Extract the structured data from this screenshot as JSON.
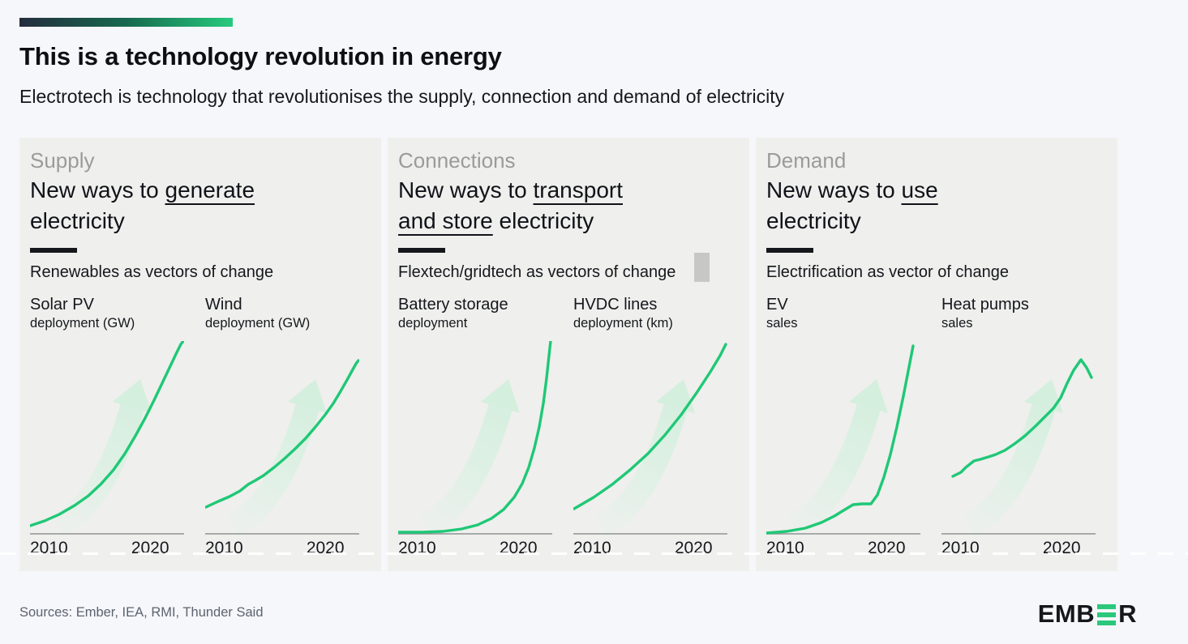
{
  "header": {
    "title": "This is a technology revolution in energy",
    "subtitle": "Electrotech is technology that revolutionises the supply, connection and demand of electricity"
  },
  "colors": {
    "accent_green": "#1fc876",
    "arrow_light_green": "#d5efde",
    "gradient_bar_start": "#252d3e",
    "gradient_bar_end": "#27ca7e",
    "panel_bg": "#efefed",
    "kicker_grey": "#9b9b9b",
    "axis_grey": "#909294",
    "text_dark": "#15171c",
    "logo_green": "#2bc87c"
  },
  "panels": [
    {
      "kicker": "Supply",
      "headline_segments": [
        {
          "t": "New ways to ",
          "u": false
        },
        {
          "t": "generate",
          "u": true
        },
        {
          "t": "\nelectricity",
          "u": false
        }
      ],
      "tagline": "Renewables as vectors of change",
      "charts": [
        {
          "title": "Solar PV",
          "subtitle": "deployment (GW)"
        },
        {
          "title": "Wind",
          "subtitle": "deployment (GW)"
        }
      ]
    },
    {
      "kicker": "Connections",
      "headline_segments": [
        {
          "t": "New ways to ",
          "u": false
        },
        {
          "t": "transport\nand store",
          "u": true
        },
        {
          "t": " electricity",
          "u": false
        }
      ],
      "tagline": "Flextech/gridtech as vectors of change",
      "charts": [
        {
          "title": "Battery storage",
          "subtitle": "deployment"
        },
        {
          "title": "HVDC lines",
          "subtitle": "deployment (km)"
        }
      ]
    },
    {
      "kicker": "Demand",
      "headline_segments": [
        {
          "t": "New ways to ",
          "u": false
        },
        {
          "t": "use",
          "u": true
        },
        {
          "t": "\nelectricity",
          "u": false
        }
      ],
      "tagline": "Electrification as vector of change",
      "charts": [
        {
          "title": "EV",
          "subtitle": "sales"
        },
        {
          "title": "Heat pumps",
          "subtitle": "sales"
        }
      ]
    }
  ],
  "chart_data": [
    {
      "type": "line",
      "name": "Solar PV deployment (GW)",
      "x_ticks": [
        "2010",
        "2020"
      ],
      "x_range_years": [
        2010,
        2024
      ],
      "y_ticks": [],
      "shape": "smooth exponential growth from near zero",
      "coord_space": "svg 190x240, y-down, schematic",
      "points": [
        [
          0,
          228
        ],
        [
          18,
          222
        ],
        [
          36,
          214
        ],
        [
          55,
          203
        ],
        [
          72,
          191
        ],
        [
          88,
          176
        ],
        [
          103,
          159
        ],
        [
          117,
          139
        ],
        [
          130,
          117
        ],
        [
          142,
          95
        ],
        [
          153,
          73
        ],
        [
          163,
          52
        ],
        [
          172,
          33
        ],
        [
          180,
          16
        ],
        [
          186,
          4
        ],
        [
          189,
          0
        ]
      ]
    },
    {
      "type": "line",
      "name": "Wind deployment (GW)",
      "x_ticks": [
        "2010",
        "2020"
      ],
      "x_range_years": [
        2010,
        2024
      ],
      "y_ticks": [],
      "shape": "steady accelerating growth from mid-level",
      "coord_space": "svg 190x240, y-down, schematic",
      "points": [
        [
          1,
          205
        ],
        [
          16,
          198
        ],
        [
          30,
          192
        ],
        [
          43,
          185
        ],
        [
          53,
          177
        ],
        [
          62,
          172
        ],
        [
          72,
          166
        ],
        [
          85,
          156
        ],
        [
          98,
          145
        ],
        [
          111,
          133
        ],
        [
          124,
          120
        ],
        [
          136,
          106
        ],
        [
          148,
          91
        ],
        [
          158,
          77
        ],
        [
          167,
          62
        ],
        [
          175,
          48
        ],
        [
          181,
          37
        ],
        [
          186,
          28
        ],
        [
          189,
          24
        ]
      ]
    },
    {
      "type": "line",
      "name": "Battery storage deployment",
      "x_ticks": [
        "2010",
        "2020"
      ],
      "x_range_years": [
        2010,
        2024
      ],
      "y_ticks": [],
      "shape": "flat near zero until ~2016 then explosive rise",
      "coord_space": "svg 190x240, y-down, schematic",
      "points": [
        [
          0,
          236
        ],
        [
          30,
          236
        ],
        [
          55,
          235
        ],
        [
          78,
          232
        ],
        [
          98,
          227
        ],
        [
          115,
          219
        ],
        [
          130,
          208
        ],
        [
          143,
          193
        ],
        [
          153,
          176
        ],
        [
          161,
          156
        ],
        [
          168,
          132
        ],
        [
          174,
          106
        ],
        [
          179,
          77
        ],
        [
          183,
          46
        ],
        [
          186,
          18
        ],
        [
          188,
          0
        ]
      ]
    },
    {
      "type": "line",
      "name": "HVDC lines deployment (km)",
      "x_ticks": [
        "2010",
        "2020"
      ],
      "x_range_years": [
        2010,
        2024
      ],
      "y_ticks": [],
      "shape": "near-linear, slightly accelerating growth",
      "coord_space": "svg 190x240, y-down, schematic",
      "points": [
        [
          1,
          207
        ],
        [
          25,
          193
        ],
        [
          48,
          177
        ],
        [
          70,
          159
        ],
        [
          92,
          139
        ],
        [
          113,
          116
        ],
        [
          133,
          91
        ],
        [
          152,
          64
        ],
        [
          169,
          38
        ],
        [
          181,
          18
        ],
        [
          188,
          4
        ]
      ]
    },
    {
      "type": "line",
      "name": "EV sales",
      "x_ticks": [
        "2010",
        "2020"
      ],
      "x_range_years": [
        2010,
        2024
      ],
      "y_ticks": [],
      "shape": "near zero, small plateau ~2019, then very steep rise",
      "coord_space": "svg 190x240, y-down, schematic",
      "points": [
        [
          0,
          237
        ],
        [
          25,
          235
        ],
        [
          48,
          231
        ],
        [
          68,
          224
        ],
        [
          84,
          216
        ],
        [
          97,
          208
        ],
        [
          107,
          202
        ],
        [
          118,
          201
        ],
        [
          129,
          201
        ],
        [
          137,
          190
        ],
        [
          145,
          168
        ],
        [
          153,
          140
        ],
        [
          161,
          106
        ],
        [
          169,
          68
        ],
        [
          176,
          32
        ],
        [
          181,
          6
        ]
      ]
    },
    {
      "type": "line",
      "name": "Heat pumps sales",
      "x_ticks": [
        "2010",
        "2020"
      ],
      "x_range_years": [
        2010,
        2024
      ],
      "y_ticks": [],
      "shape": "stepped growth to a peak ~2022 then decline",
      "coord_space": "svg 190x240, y-down, schematic",
      "points": [
        [
          14,
          167
        ],
        [
          24,
          162
        ],
        [
          30,
          156
        ],
        [
          40,
          148
        ],
        [
          48,
          146
        ],
        [
          58,
          143
        ],
        [
          67,
          140
        ],
        [
          78,
          135
        ],
        [
          90,
          127
        ],
        [
          103,
          117
        ],
        [
          116,
          105
        ],
        [
          128,
          93
        ],
        [
          138,
          83
        ],
        [
          147,
          70
        ],
        [
          155,
          52
        ],
        [
          163,
          36
        ],
        [
          172,
          23
        ],
        [
          179,
          33
        ],
        [
          185,
          45
        ]
      ]
    }
  ],
  "footer": {
    "sources": "Sources: Ember, IEA, RMI, Thunder Said",
    "logo": {
      "name": "EMBER",
      "prefix": "EMB",
      "suffix": "R"
    }
  }
}
